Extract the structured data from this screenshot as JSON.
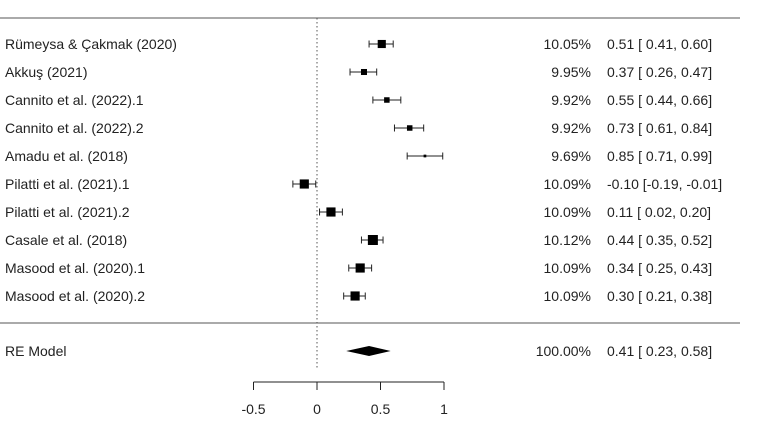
{
  "chart_data": {
    "type": "forest",
    "xlim": [
      -0.5,
      1
    ],
    "xticks": [
      {
        "value": -0.5,
        "label": "-0.5"
      },
      {
        "value": 0,
        "label": "0"
      },
      {
        "value": 0.5,
        "label": "0.5"
      },
      {
        "value": 1,
        "label": "1"
      }
    ],
    "reference_line": 0,
    "studies": [
      {
        "label": "Rümeysa  & Çakmak (2020)",
        "estimate": 0.51,
        "ci_low": 0.41,
        "ci_high": 0.6,
        "weight": "10.05%",
        "ci_text": "0.51 [ 0.41,  0.60]",
        "weight_value": 10.05
      },
      {
        "label": "Akkuş (2021)",
        "estimate": 0.37,
        "ci_low": 0.26,
        "ci_high": 0.47,
        "weight": "9.95%",
        "ci_text": "0.37 [ 0.26,  0.47]",
        "weight_value": 9.95
      },
      {
        "label": "Cannito  et al. (2022).1",
        "estimate": 0.55,
        "ci_low": 0.44,
        "ci_high": 0.66,
        "weight": "9.92%",
        "ci_text": "0.55 [ 0.44,  0.66]",
        "weight_value": 9.92
      },
      {
        "label": "Cannito  et al. (2022).2",
        "estimate": 0.73,
        "ci_low": 0.61,
        "ci_high": 0.84,
        "weight": "9.92%",
        "ci_text": "0.73 [ 0.61,  0.84]",
        "weight_value": 9.92
      },
      {
        "label": "Amadu et al. (2018)",
        "estimate": 0.85,
        "ci_low": 0.71,
        "ci_high": 0.99,
        "weight": "9.69%",
        "ci_text": "0.85 [ 0.71,  0.99]",
        "weight_value": 9.69
      },
      {
        "label": "Pilatti et al. (2021).1",
        "estimate": -0.1,
        "ci_low": -0.19,
        "ci_high": -0.01,
        "weight": "10.09%",
        "ci_text": "-0.10 [-0.19, -0.01]",
        "weight_value": 10.09
      },
      {
        "label": "Pilatti et al. (2021).2",
        "estimate": 0.11,
        "ci_low": 0.02,
        "ci_high": 0.2,
        "weight": "10.09%",
        "ci_text": "0.11 [ 0.02,  0.20]",
        "weight_value": 10.09
      },
      {
        "label": "Casale et al. (2018)",
        "estimate": 0.44,
        "ci_low": 0.35,
        "ci_high": 0.52,
        "weight": "10.12%",
        "ci_text": "0.44 [ 0.35,  0.52]",
        "weight_value": 10.12
      },
      {
        "label": "Masood et al. (2020).1",
        "estimate": 0.34,
        "ci_low": 0.25,
        "ci_high": 0.43,
        "weight": "10.09%",
        "ci_text": "0.34 [ 0.25,  0.43]",
        "weight_value": 10.09
      },
      {
        "label": "Masood et al. (2020).2",
        "estimate": 0.3,
        "ci_low": 0.21,
        "ci_high": 0.38,
        "weight": "10.09%",
        "ci_text": "0.30 [ 0.21,  0.38]",
        "weight_value": 10.09
      }
    ],
    "summary": {
      "label": "RE Model",
      "estimate": 0.41,
      "ci_low": 0.23,
      "ci_high": 0.58,
      "weight": "100.00%",
      "ci_text": "0.41 [ 0.23,  0.58]"
    }
  }
}
